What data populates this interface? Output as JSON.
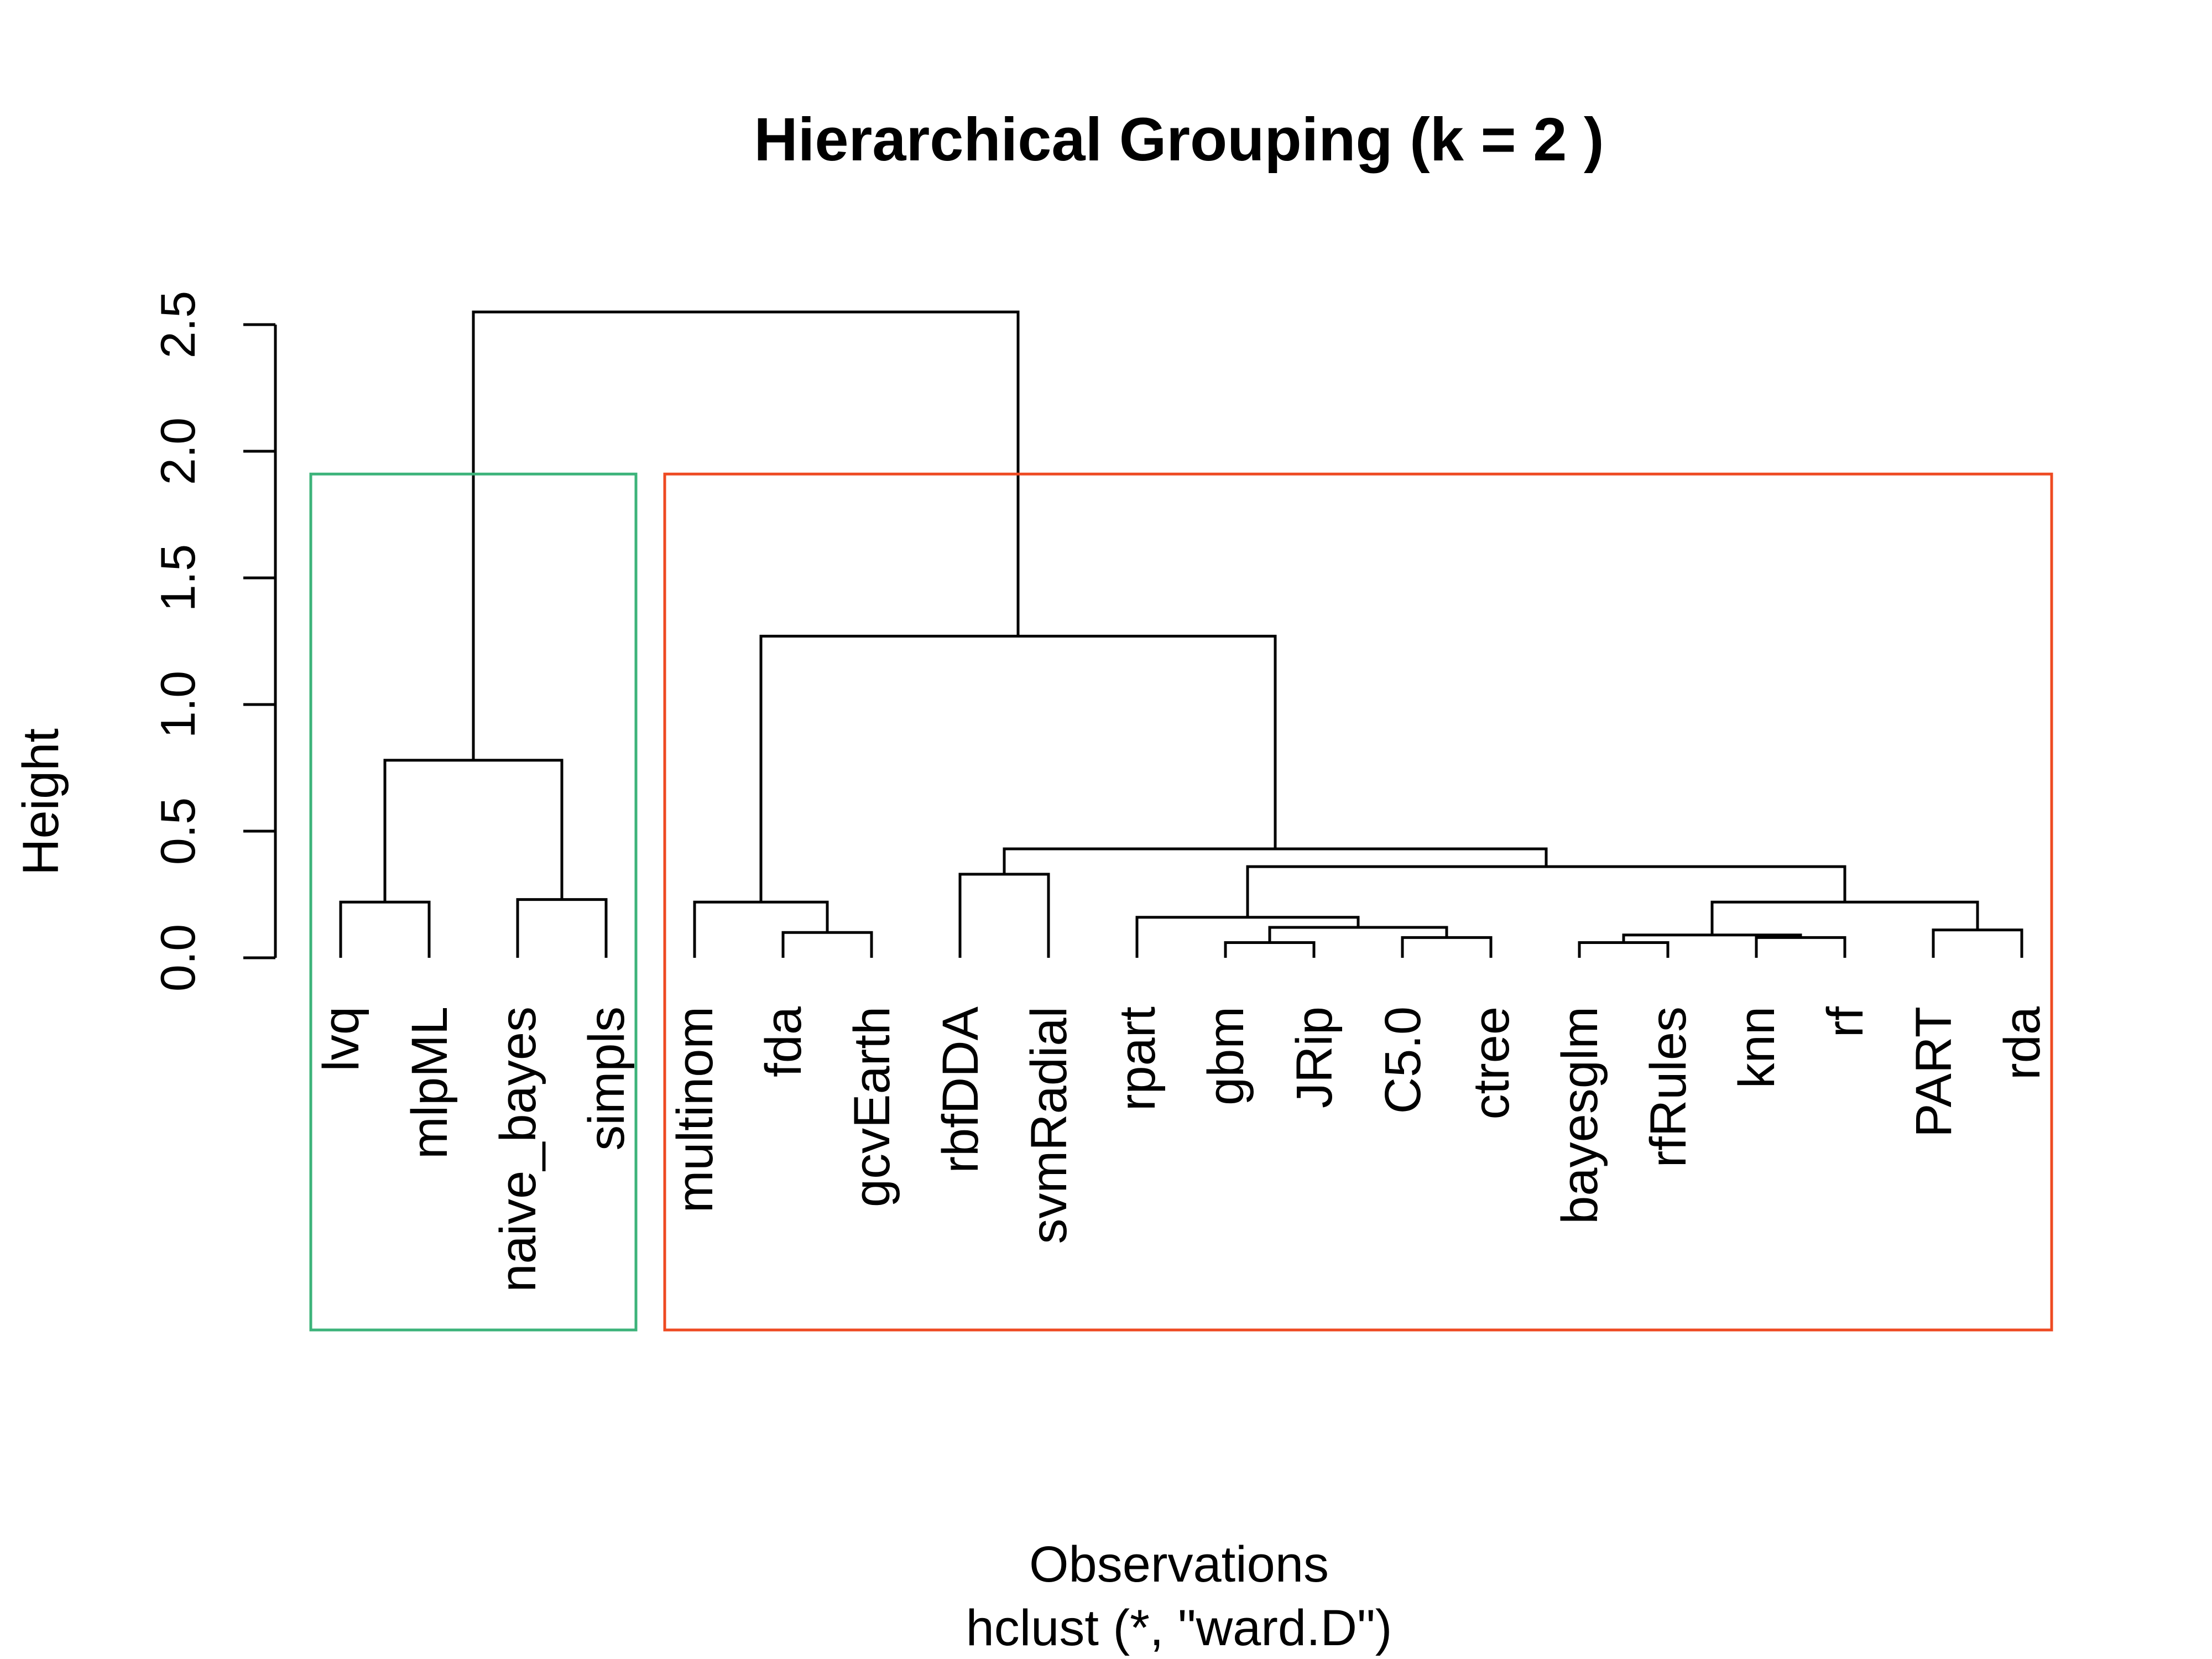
{
  "chart_data": {
    "type": "dendrogram",
    "title": "Hierarchical Grouping (k = 2 )",
    "xlabel": "Observations",
    "sublabel": "hclust (*, \"ward.D\")",
    "ylabel": "Height",
    "ylim": [
      0,
      2.7
    ],
    "yticks": [
      "0.0",
      "0.5",
      "1.0",
      "1.5",
      "2.0",
      "2.5"
    ],
    "leaves": [
      "lvq",
      "mlpML",
      "naive_bayes",
      "simpls",
      "multinom",
      "fda",
      "gcvEarth",
      "rbfDDA",
      "svmRadial",
      "rpart",
      "gbm",
      "JRip",
      "C5.0",
      "ctree",
      "bayesglm",
      "rfRules",
      "knn",
      "rf",
      "PART",
      "rda"
    ],
    "merges": [
      {
        "left": "L0",
        "right": "L1",
        "height": 0.22
      },
      {
        "left": "L2",
        "right": "L3",
        "height": 0.23
      },
      {
        "left": "M0",
        "right": "M1",
        "height": 0.78
      },
      {
        "left": "L5",
        "right": "L6",
        "height": 0.1
      },
      {
        "left": "L4",
        "right": "M3",
        "height": 0.22
      },
      {
        "left": "L7",
        "right": "L8",
        "height": 0.33
      },
      {
        "left": "L10",
        "right": "L11",
        "height": 0.06
      },
      {
        "left": "L12",
        "right": "L13",
        "height": 0.08
      },
      {
        "left": "M6",
        "right": "M7",
        "height": 0.12
      },
      {
        "left": "L9",
        "right": "M8",
        "height": 0.16
      },
      {
        "left": "L14",
        "right": "L15",
        "height": 0.06
      },
      {
        "left": "L16",
        "right": "L17",
        "height": 0.08
      },
      {
        "left": "M10",
        "right": "M11",
        "height": 0.09
      },
      {
        "left": "L18",
        "right": "L19",
        "height": 0.11
      },
      {
        "left": "M12",
        "right": "M13",
        "height": 0.22
      },
      {
        "left": "M9",
        "right": "M14",
        "height": 0.36
      },
      {
        "left": "M5",
        "right": "M15",
        "height": 0.43
      },
      {
        "left": "M4",
        "right": "M16",
        "height": 1.27
      },
      {
        "left": "M2",
        "right": "M17",
        "height": 2.55
      }
    ],
    "clusters": [
      {
        "members": [
          "lvq",
          "mlpML",
          "naive_bayes",
          "simpls"
        ],
        "color": "#3cb37a"
      },
      {
        "members": [
          "multinom",
          "fda",
          "gcvEarth",
          "rbfDDA",
          "svmRadial",
          "rpart",
          "gbm",
          "JRip",
          "C5.0",
          "ctree",
          "bayesglm",
          "rfRules",
          "knn",
          "rf",
          "PART",
          "rda"
        ],
        "color": "#ee4a22"
      }
    ]
  }
}
